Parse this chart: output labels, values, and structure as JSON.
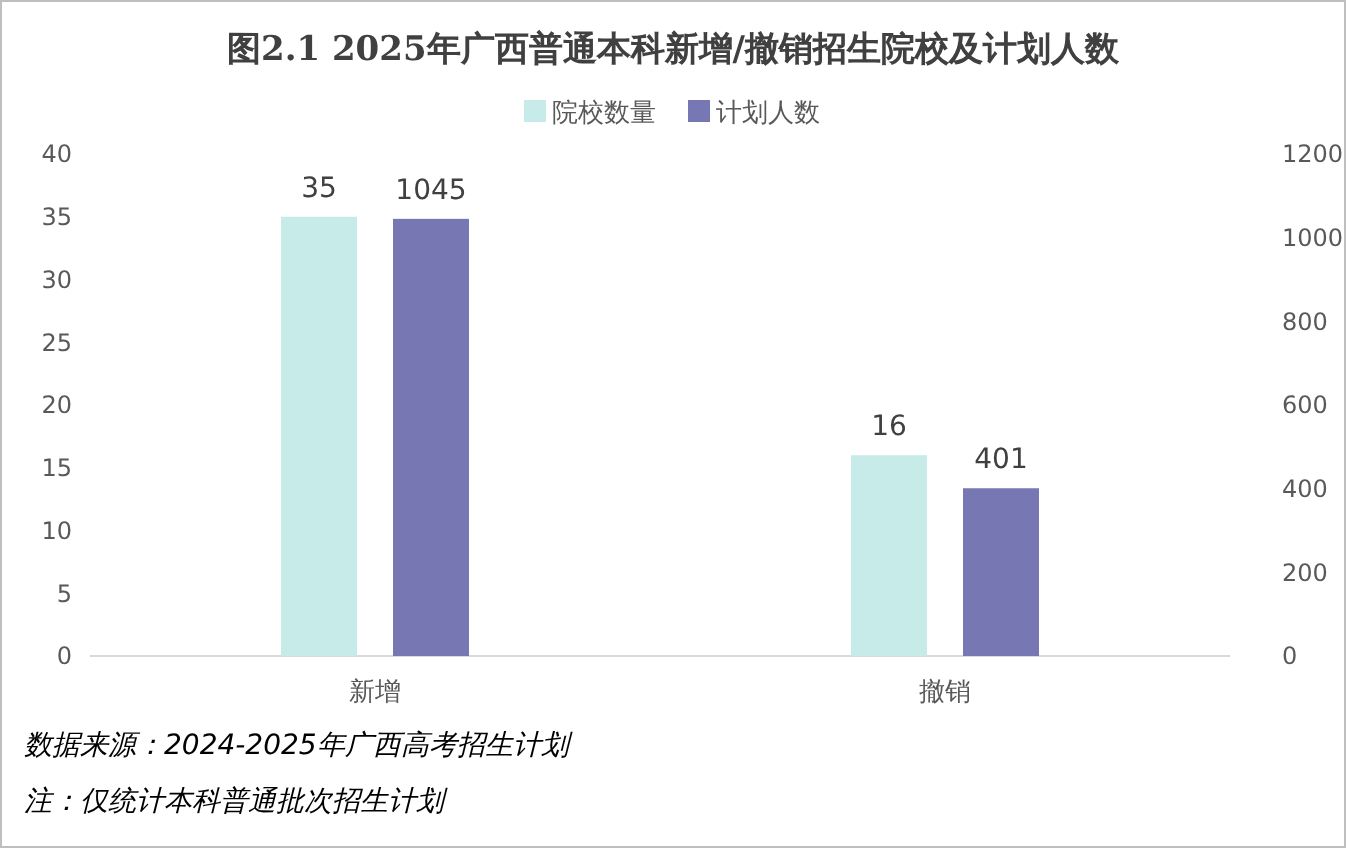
{
  "chart_data": {
    "type": "bar",
    "title": "图2.1 2025年广西普通本科新增/撤销招生院校及计划人数",
    "categories": [
      "新增",
      "撤销"
    ],
    "series": [
      {
        "name": "院校数量",
        "color": "#c6ebe9",
        "values": [
          35,
          16
        ]
      },
      {
        "name": "计划人数",
        "color": "#7777b3",
        "values": [
          1045,
          401
        ],
        "axis": "y2"
      }
    ],
    "ylim": [
      0,
      40
    ],
    "yticks": [
      0,
      5,
      10,
      15,
      20,
      25,
      30,
      35,
      40
    ],
    "y2lim": [
      0,
      1200
    ],
    "y2ticks": [
      0,
      200,
      400,
      600,
      800,
      1000,
      1200
    ],
    "data_labels": true,
    "legend": "top",
    "grid": false,
    "annotations": [
      "数据来源：2024-2025年广西高考招生计划",
      "注：仅统计本科普通批次招生计划"
    ]
  }
}
